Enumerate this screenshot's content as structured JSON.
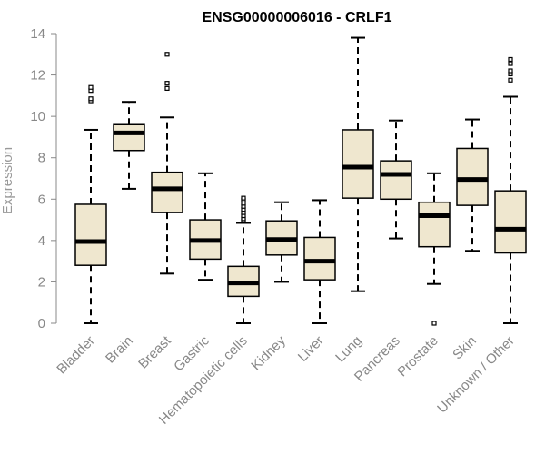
{
  "chart_data": {
    "type": "boxplot",
    "title": "ENSG00000006016 - CRLF1",
    "ylabel": "Expression",
    "ylim": [
      0,
      14
    ],
    "yticks": [
      0,
      2,
      4,
      6,
      8,
      10,
      12,
      14
    ],
    "grid": false,
    "colors": {
      "box_fill": "#efe7cf",
      "box_stroke": "#000000",
      "axis": "#888888",
      "label": "#888888"
    },
    "categories": [
      "Bladder",
      "Brain",
      "Breast",
      "Gastric",
      "Hematopoietic cells",
      "Kidney",
      "Liver",
      "Lung",
      "Pancreas",
      "Prostate",
      "Skin",
      "Unknown / Other"
    ],
    "boxes": [
      {
        "category": "Bladder",
        "whisker_low": 0.0,
        "q1": 2.8,
        "median": 3.95,
        "q3": 5.75,
        "whisker_high": 9.35,
        "outliers": [
          10.75,
          10.85,
          11.25,
          11.4
        ]
      },
      {
        "category": "Brain",
        "whisker_low": 6.5,
        "q1": 8.35,
        "median": 9.2,
        "q3": 9.6,
        "whisker_high": 10.7,
        "outliers": []
      },
      {
        "category": "Breast",
        "whisker_low": 2.4,
        "q1": 5.35,
        "median": 6.5,
        "q3": 7.3,
        "whisker_high": 9.95,
        "outliers": [
          11.35,
          11.6,
          13.0
        ]
      },
      {
        "category": "Gastric",
        "whisker_low": 2.1,
        "q1": 3.1,
        "median": 4.0,
        "q3": 5.0,
        "whisker_high": 7.25,
        "outliers": []
      },
      {
        "category": "Hematopoietic cells",
        "whisker_low": 0.0,
        "q1": 1.3,
        "median": 1.95,
        "q3": 2.75,
        "whisker_high": 4.85,
        "outliers": [
          4.95,
          5.05,
          5.2,
          5.35,
          5.5,
          5.65,
          5.8,
          5.95,
          6.05
        ]
      },
      {
        "category": "Kidney",
        "whisker_low": 2.0,
        "q1": 3.3,
        "median": 4.05,
        "q3": 4.95,
        "whisker_high": 5.85,
        "outliers": []
      },
      {
        "category": "Liver",
        "whisker_low": 0.0,
        "q1": 2.1,
        "median": 3.0,
        "q3": 4.15,
        "whisker_high": 5.95,
        "outliers": []
      },
      {
        "category": "Lung",
        "whisker_low": 1.55,
        "q1": 6.05,
        "median": 7.55,
        "q3": 9.35,
        "whisker_high": 13.8,
        "outliers": []
      },
      {
        "category": "Pancreas",
        "whisker_low": 4.1,
        "q1": 6.0,
        "median": 7.2,
        "q3": 7.85,
        "whisker_high": 9.8,
        "outliers": []
      },
      {
        "category": "Prostate",
        "whisker_low": 1.9,
        "q1": 3.7,
        "median": 5.2,
        "q3": 5.85,
        "whisker_high": 7.25,
        "outliers": [
          0.0
        ]
      },
      {
        "category": "Skin",
        "whisker_low": 3.5,
        "q1": 5.7,
        "median": 6.95,
        "q3": 8.45,
        "whisker_high": 9.85,
        "outliers": []
      },
      {
        "category": "Unknown / Other",
        "whisker_low": 0.0,
        "q1": 3.4,
        "median": 4.55,
        "q3": 6.4,
        "whisker_high": 10.95,
        "outliers": [
          11.75,
          12.05,
          12.2,
          12.55,
          12.75
        ]
      }
    ]
  }
}
